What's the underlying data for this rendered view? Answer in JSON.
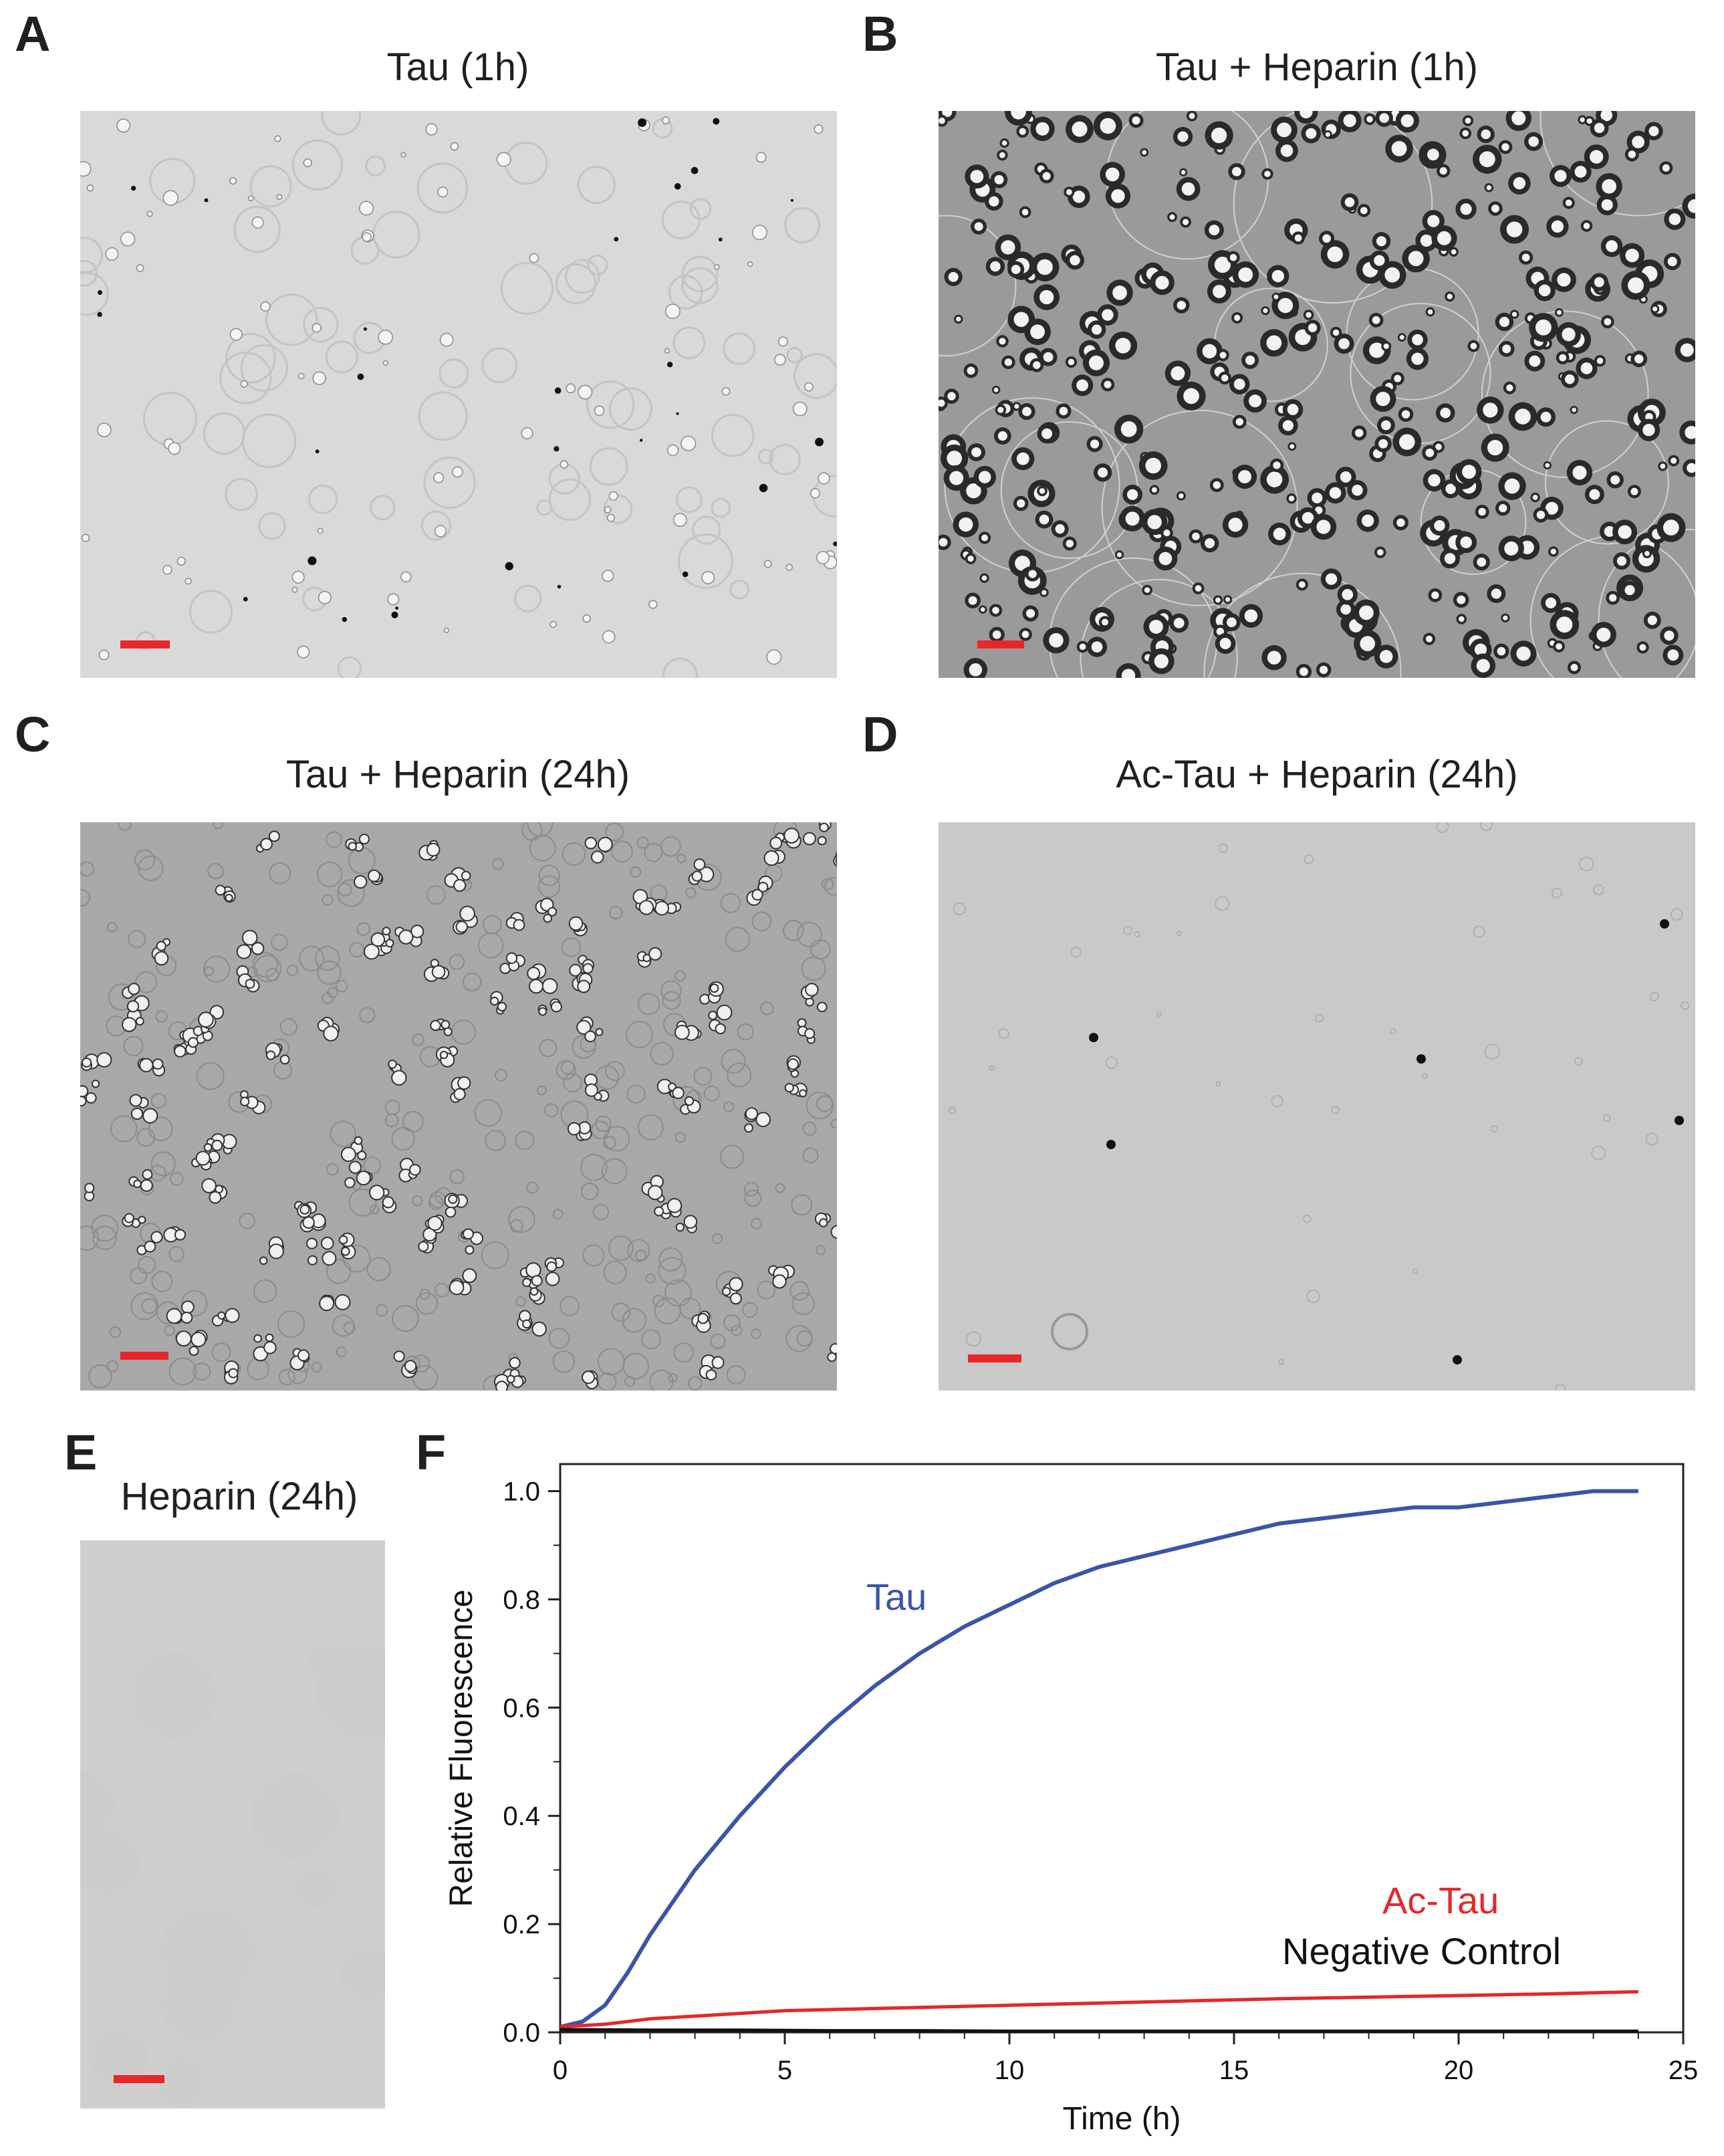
{
  "panels": [
    {
      "letter": "A",
      "title": "Tau (1h)",
      "texture": "light-droplets"
    },
    {
      "letter": "B",
      "title": "Tau + Heparin (1h)",
      "texture": "dense-droplets"
    },
    {
      "letter": "C",
      "title": "Tau + Heparin (24h)",
      "texture": "aggregates"
    },
    {
      "letter": "D",
      "title": "Ac-Tau + Heparin (24h)",
      "texture": "sparse"
    },
    {
      "letter": "E",
      "title": "Heparin (24h)",
      "texture": "empty"
    },
    {
      "letter": "F",
      "title": ""
    }
  ],
  "colors": {
    "scalebar": "#e8262b",
    "tau": "#3a55a8",
    "ac_tau": "#e8262b",
    "negative": "#111111"
  },
  "chart_data": {
    "type": "line",
    "title": "",
    "xlabel": "Time (h)",
    "ylabel": "Relative Fluorescence",
    "xlim": [
      0,
      25
    ],
    "ylim": [
      0.0,
      1.05
    ],
    "xticks": [
      "0",
      "5",
      "10",
      "15",
      "20",
      "25"
    ],
    "yticks": [
      "0.0",
      "0.2",
      "0.4",
      "0.6",
      "0.8",
      "1.0"
    ],
    "grid": false,
    "series": [
      {
        "name": "Tau",
        "color": "#3a55a8",
        "x": [
          0,
          0.5,
          1,
          1.5,
          2,
          2.5,
          3,
          3.5,
          4,
          5,
          6,
          7,
          8,
          9,
          10,
          11,
          12,
          13,
          14,
          15,
          16,
          17,
          18,
          19,
          20,
          21,
          22,
          23,
          24
        ],
        "y": [
          0.01,
          0.02,
          0.05,
          0.11,
          0.18,
          0.24,
          0.3,
          0.35,
          0.4,
          0.49,
          0.57,
          0.64,
          0.7,
          0.75,
          0.79,
          0.83,
          0.86,
          0.88,
          0.9,
          0.92,
          0.94,
          0.95,
          0.96,
          0.97,
          0.97,
          0.98,
          0.99,
          1.0,
          1.0
        ]
      },
      {
        "name": "Ac-Tau",
        "color": "#e8262b",
        "x": [
          0,
          1,
          2,
          3,
          4,
          5,
          6,
          8,
          10,
          12,
          14,
          16,
          18,
          20,
          22,
          24
        ],
        "y": [
          0.01,
          0.015,
          0.025,
          0.03,
          0.035,
          0.04,
          0.042,
          0.046,
          0.05,
          0.054,
          0.058,
          0.062,
          0.065,
          0.068,
          0.071,
          0.075
        ]
      },
      {
        "name": "Negative Control",
        "color": "#111111",
        "x": [
          0,
          2,
          4,
          6,
          8,
          10,
          12,
          14,
          16,
          18,
          20,
          22,
          24
        ],
        "y": [
          0.005,
          0.004,
          0.004,
          0.003,
          0.003,
          0.002,
          0.002,
          0.002,
          0.002,
          0.002,
          0.002,
          0.002,
          0.002
        ]
      }
    ]
  }
}
